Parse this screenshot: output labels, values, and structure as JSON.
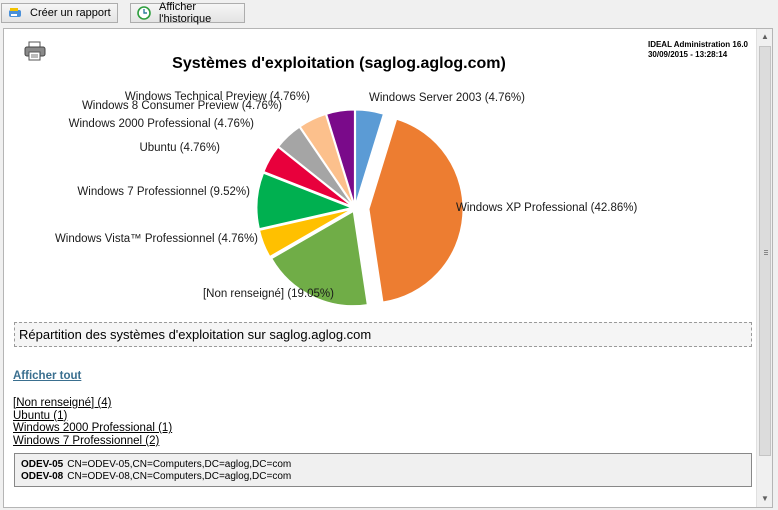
{
  "toolbar": {
    "create_report_label": "Créer un rapport",
    "show_history_label": "Afficher l'historique"
  },
  "report": {
    "title": "Systèmes d'exploitation (saglog.aglog.com)",
    "app_name": "IDEAL Administration 16.0",
    "timestamp": "30/09/2015 - 13:28:14",
    "caption": "Répartition des systèmes d'exploitation sur saglog.aglog.com",
    "show_all_label": "Afficher tout",
    "list_items": [
      "[Non renseigné] (4)",
      "Ubuntu (1)",
      "Windows 2000 Professional (1)",
      "Windows 7 Professionnel (2)"
    ],
    "details": [
      {
        "name": "ODEV-05",
        "dn": "CN=ODEV-05,CN=Computers,DC=aglog,DC=com"
      },
      {
        "name": "ODEV-08",
        "dn": "CN=ODEV-08,CN=Computers,DC=aglog,DC=com"
      }
    ]
  },
  "chart_data": {
    "type": "pie",
    "title": "Systèmes d'exploitation (saglog.aglog.com)",
    "slices": [
      {
        "label": "Windows Server 2003 (4.76%)",
        "value": 4.76,
        "color": "#5b9bd5"
      },
      {
        "label": "Windows XP Professional (42.86%)",
        "value": 42.86,
        "color": "#ed7d31"
      },
      {
        "label": "[Non renseigné] (19.05%)",
        "value": 19.05,
        "color": "#70ad47"
      },
      {
        "label": "Windows Vista™ Professionnel (4.76%)",
        "value": 4.76,
        "color": "#ffc000"
      },
      {
        "label": "Windows 7 Professionnel (9.52%)",
        "value": 9.52,
        "color": "#00b050"
      },
      {
        "label": "Ubuntu (4.76%)",
        "value": 4.76,
        "color": "#e8003c"
      },
      {
        "label": "Windows 2000 Professional (4.76%)",
        "value": 4.76,
        "color": "#a5a5a5"
      },
      {
        "label": "Windows 8 Consumer Preview (4.76%)",
        "value": 4.76,
        "color": "#fcc08c"
      },
      {
        "label": "Windows Technical Preview (4.76%)",
        "value": 4.76,
        "color": "#7a0a8a"
      }
    ]
  }
}
